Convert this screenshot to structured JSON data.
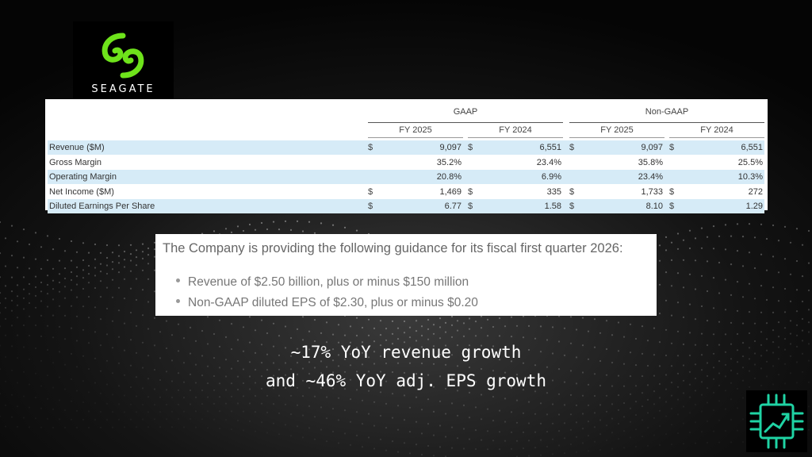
{
  "brand": {
    "name": "SEAGATE",
    "logo_color": "#6ee31b"
  },
  "financials": {
    "groups": [
      "GAAP",
      "Non-GAAP"
    ],
    "years": [
      "FY 2025",
      "FY 2024",
      "FY 2025",
      "FY 2024"
    ],
    "rows": [
      {
        "label": "Revenue ($M)",
        "cur": [
          "$",
          "$",
          "$",
          "$"
        ],
        "values": [
          "9,097",
          "6,551",
          "9,097",
          "6,551"
        ],
        "shaded": true
      },
      {
        "label": "Gross Margin",
        "cur": [
          "",
          "",
          "",
          ""
        ],
        "values": [
          "35.2%",
          "23.4%",
          "35.8%",
          "25.5%"
        ],
        "shaded": false
      },
      {
        "label": "Operating Margin",
        "cur": [
          "",
          "",
          "",
          ""
        ],
        "values": [
          "20.8%",
          "6.9%",
          "23.4%",
          "10.3%"
        ],
        "shaded": true
      },
      {
        "label": "Net Income ($M)",
        "cur": [
          "$",
          "$",
          "$",
          "$"
        ],
        "values": [
          "1,469",
          "335",
          "1,733",
          "272"
        ],
        "shaded": false
      },
      {
        "label": "Diluted Earnings Per Share",
        "cur": [
          "$",
          "$",
          "$",
          "$"
        ],
        "values": [
          "6.77",
          "1.58",
          "8.10",
          "1.29"
        ],
        "shaded": true
      }
    ],
    "shade_color": "#d6ebf7"
  },
  "guidance": {
    "heading": "The Company is providing the following guidance for its fiscal first quarter 2026:",
    "items": [
      "Revenue of $2.50 billion, plus or minus $150 million",
      "Non-GAAP diluted EPS of $2.30, plus or minus $0.20"
    ]
  },
  "caption": {
    "line1": "~17% YoY revenue growth",
    "line2": "and ~46% YoY adj. EPS growth"
  },
  "corner_logo": {
    "icon": "chip-growth-icon",
    "color": "#1fd3a4"
  }
}
